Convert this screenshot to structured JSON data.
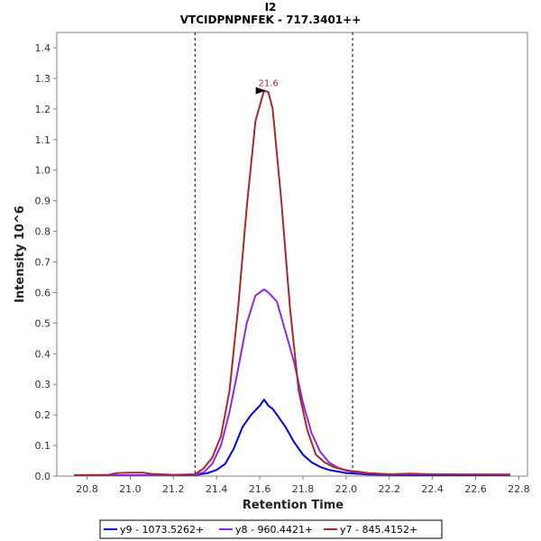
{
  "chart_data": {
    "type": "line",
    "title": "I2",
    "subtitle": "VTCIDPNPNFEK - 717.3401++",
    "xlabel": "Retention Time",
    "ylabel": "Intensity 10^6",
    "xlim": [
      20.66,
      22.84
    ],
    "ylim": [
      0,
      1.45
    ],
    "xticks": [
      "20.8",
      "21.0",
      "21.2",
      "21.4",
      "21.6",
      "21.8",
      "22.0",
      "22.2",
      "22.4",
      "22.6",
      "22.8"
    ],
    "yticks": [
      "0.0",
      "0.1",
      "0.2",
      "0.3",
      "0.4",
      "0.5",
      "0.6",
      "0.7",
      "0.8",
      "0.9",
      "1.0",
      "1.1",
      "1.2",
      "1.3",
      "1.4"
    ],
    "vlines": [
      21.3,
      22.03
    ],
    "peak_annotation": {
      "text": "21.6",
      "x": 21.64,
      "y": 1.26,
      "color": "#a52a2a"
    },
    "grid": false,
    "legend_position": "bottom",
    "series": [
      {
        "name": "y9 - 1073.5262+",
        "color": "#0000dd",
        "x": [
          20.74,
          21.2,
          21.3,
          21.36,
          21.4,
          21.44,
          21.48,
          21.52,
          21.56,
          21.6,
          21.62,
          21.64,
          21.66,
          21.68,
          21.7,
          21.72,
          21.76,
          21.8,
          21.84,
          21.88,
          21.92,
          21.96,
          22.0,
          22.1,
          22.3,
          22.76
        ],
        "y": [
          0.003,
          0.003,
          0.003,
          0.01,
          0.02,
          0.04,
          0.09,
          0.16,
          0.2,
          0.23,
          0.25,
          0.23,
          0.22,
          0.2,
          0.18,
          0.16,
          0.11,
          0.07,
          0.045,
          0.03,
          0.02,
          0.015,
          0.01,
          0.005,
          0.003,
          0.003
        ]
      },
      {
        "name": "y8 - 960.4421+",
        "color": "#8a2be2",
        "x": [
          20.74,
          21.2,
          21.3,
          21.34,
          21.38,
          21.42,
          21.46,
          21.5,
          21.54,
          21.58,
          21.62,
          21.64,
          21.68,
          21.72,
          21.76,
          21.8,
          21.84,
          21.88,
          21.92,
          21.96,
          22.0,
          22.06,
          22.2,
          22.76
        ],
        "y": [
          0.003,
          0.003,
          0.004,
          0.012,
          0.04,
          0.1,
          0.21,
          0.35,
          0.5,
          0.59,
          0.61,
          0.6,
          0.57,
          0.47,
          0.37,
          0.24,
          0.14,
          0.08,
          0.045,
          0.028,
          0.018,
          0.01,
          0.006,
          0.004
        ]
      },
      {
        "name": "y7 - 845.4152+",
        "color": "#a52a2a",
        "x": [
          20.74,
          20.9,
          20.94,
          21.0,
          21.06,
          21.1,
          21.2,
          21.3,
          21.34,
          21.38,
          21.42,
          21.46,
          21.5,
          21.54,
          21.58,
          21.62,
          21.64,
          21.66,
          21.7,
          21.74,
          21.78,
          21.82,
          21.86,
          21.9,
          21.94,
          21.98,
          22.02,
          22.06,
          22.1,
          22.2,
          22.3,
          22.4,
          22.76
        ],
        "y": [
          0.003,
          0.004,
          0.01,
          0.011,
          0.011,
          0.007,
          0.004,
          0.006,
          0.025,
          0.06,
          0.13,
          0.28,
          0.55,
          0.88,
          1.16,
          1.26,
          1.255,
          1.2,
          0.9,
          0.55,
          0.28,
          0.15,
          0.07,
          0.045,
          0.03,
          0.022,
          0.017,
          0.014,
          0.01,
          0.006,
          0.008,
          0.006,
          0.005
        ]
      }
    ]
  }
}
